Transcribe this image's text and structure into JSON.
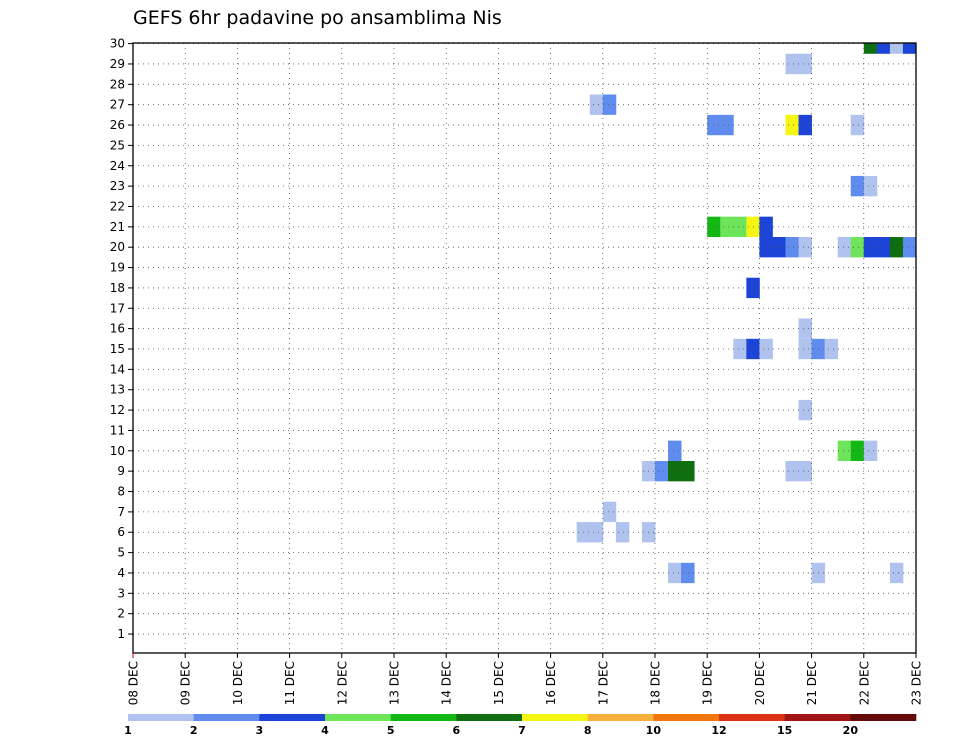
{
  "chart_data": {
    "type": "heatmap",
    "title": "GEFS 6hr padavine po ansamblima Nis",
    "xlabel": "",
    "ylabel": "",
    "y_ticks": [
      1,
      2,
      3,
      4,
      5,
      6,
      7,
      8,
      9,
      10,
      11,
      12,
      13,
      14,
      15,
      16,
      17,
      18,
      19,
      20,
      21,
      22,
      23,
      24,
      25,
      26,
      27,
      28,
      29,
      30
    ],
    "x_tick_labels": [
      "08 DEC",
      "09 DEC",
      "10 DEC",
      "11 DEC",
      "12 DEC",
      "13 DEC",
      "14 DEC",
      "15 DEC",
      "16 DEC",
      "17 DEC",
      "18 DEC",
      "19 DEC",
      "20 DEC",
      "21 DEC",
      "22 DEC",
      "23 DEC"
    ],
    "x_range_days": [
      0,
      15
    ],
    "time_step_hours": 6,
    "grid": "dotted",
    "legend": {
      "placement": "bottom",
      "labels": [
        "1",
        "2",
        "3",
        "4",
        "5",
        "6",
        "7",
        "8",
        "10",
        "12",
        "15",
        "20"
      ],
      "colors": [
        "#afc3ee",
        "#5f8cee",
        "#1c44d7",
        "#6ee45a",
        "#14b814",
        "#0f6e0f",
        "#f5f514",
        "#f6b03c",
        "#f0780f",
        "#dc3214",
        "#a01414",
        "#640a0a"
      ]
    },
    "cells": [
      {
        "member": 30,
        "step": 56,
        "value": 6
      },
      {
        "member": 30,
        "step": 57,
        "value": 3
      },
      {
        "member": 30,
        "step": 58,
        "value": 1
      },
      {
        "member": 30,
        "step": 59,
        "value": 3
      },
      {
        "member": 29,
        "step": 50,
        "value": 1
      },
      {
        "member": 29,
        "step": 51,
        "value": 1
      },
      {
        "member": 27,
        "step": 35,
        "value": 1
      },
      {
        "member": 27,
        "step": 36,
        "value": 2
      },
      {
        "member": 26,
        "step": 44,
        "value": 2
      },
      {
        "member": 26,
        "step": 45,
        "value": 2
      },
      {
        "member": 26,
        "step": 50,
        "value": 7
      },
      {
        "member": 26,
        "step": 51,
        "value": 3
      },
      {
        "member": 26,
        "step": 55,
        "value": 1
      },
      {
        "member": 23,
        "step": 55,
        "value": 2
      },
      {
        "member": 23,
        "step": 56,
        "value": 1
      },
      {
        "member": 21,
        "step": 44,
        "value": 5
      },
      {
        "member": 21,
        "step": 45,
        "value": 4
      },
      {
        "member": 21,
        "step": 46,
        "value": 4
      },
      {
        "member": 21,
        "step": 47,
        "value": 7
      },
      {
        "member": 21,
        "step": 48,
        "value": 3
      },
      {
        "member": 20,
        "step": 48,
        "value": 3
      },
      {
        "member": 20,
        "step": 49,
        "value": 3
      },
      {
        "member": 20,
        "step": 50,
        "value": 2
      },
      {
        "member": 20,
        "step": 51,
        "value": 1
      },
      {
        "member": 20,
        "step": 54,
        "value": 1
      },
      {
        "member": 20,
        "step": 55,
        "value": 4
      },
      {
        "member": 20,
        "step": 56,
        "value": 3
      },
      {
        "member": 20,
        "step": 57,
        "value": 3
      },
      {
        "member": 20,
        "step": 58,
        "value": 6
      },
      {
        "member": 20,
        "step": 59,
        "value": 2
      },
      {
        "member": 18,
        "step": 47,
        "value": 3
      },
      {
        "member": 16,
        "step": 51,
        "value": 1
      },
      {
        "member": 15,
        "step": 46,
        "value": 1
      },
      {
        "member": 15,
        "step": 47,
        "value": 3
      },
      {
        "member": 15,
        "step": 48,
        "value": 1
      },
      {
        "member": 15,
        "step": 51,
        "value": 1
      },
      {
        "member": 15,
        "step": 52,
        "value": 2
      },
      {
        "member": 15,
        "step": 53,
        "value": 1
      },
      {
        "member": 12,
        "step": 51,
        "value": 1
      },
      {
        "member": 10,
        "step": 41,
        "value": 2
      },
      {
        "member": 10,
        "step": 54,
        "value": 4
      },
      {
        "member": 10,
        "step": 55,
        "value": 5
      },
      {
        "member": 10,
        "step": 56,
        "value": 1
      },
      {
        "member": 9,
        "step": 39,
        "value": 1
      },
      {
        "member": 9,
        "step": 40,
        "value": 2
      },
      {
        "member": 9,
        "step": 41,
        "value": 6
      },
      {
        "member": 9,
        "step": 42,
        "value": 6
      },
      {
        "member": 9,
        "step": 50,
        "value": 1
      },
      {
        "member": 9,
        "step": 51,
        "value": 1
      },
      {
        "member": 7,
        "step": 36,
        "value": 1
      },
      {
        "member": 6,
        "step": 34,
        "value": 1
      },
      {
        "member": 6,
        "step": 35,
        "value": 1
      },
      {
        "member": 6,
        "step": 37,
        "value": 1
      },
      {
        "member": 6,
        "step": 39,
        "value": 1
      },
      {
        "member": 4,
        "step": 41,
        "value": 1
      },
      {
        "member": 4,
        "step": 42,
        "value": 2
      },
      {
        "member": 4,
        "step": 52,
        "value": 1
      },
      {
        "member": 4,
        "step": 58,
        "value": 1
      }
    ]
  }
}
